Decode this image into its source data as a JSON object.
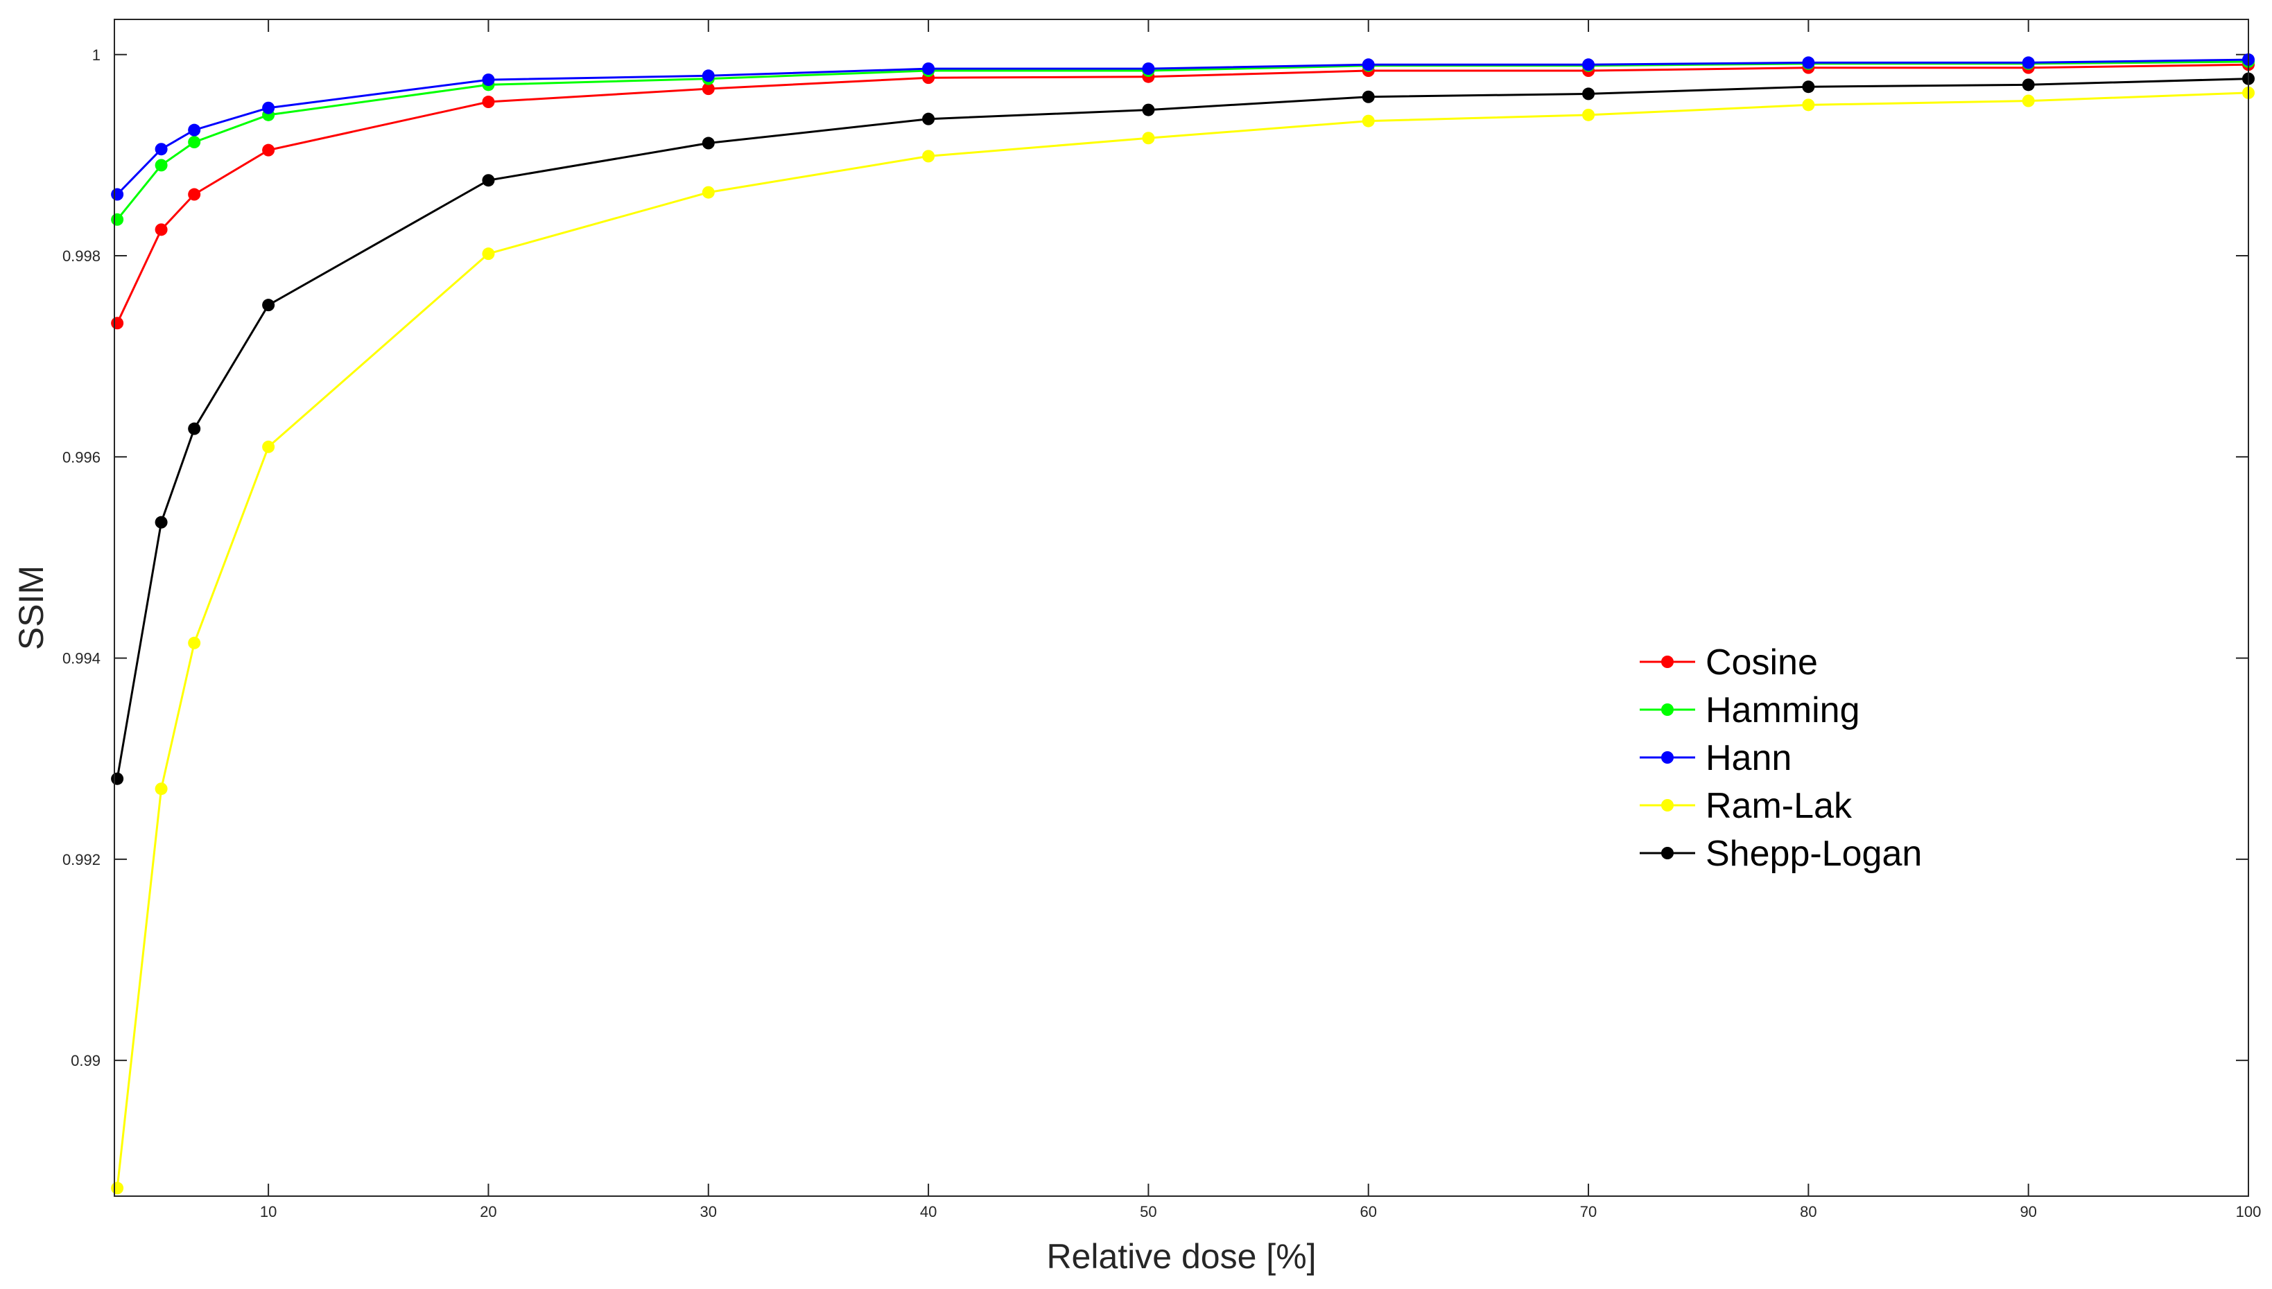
{
  "chart_data": {
    "type": "line",
    "title": "",
    "xlabel": "Relative dose [%]",
    "ylabel": "SSIM",
    "xlim": [
      3,
      100
    ],
    "ylim": [
      0.98865,
      1.00035
    ],
    "xticks": [
      10,
      20,
      30,
      40,
      50,
      60,
      70,
      80,
      90,
      100
    ],
    "yticks": [
      0.99,
      0.992,
      0.994,
      0.996,
      0.998,
      1
    ],
    "ytick_labels": [
      "0.99",
      "0.992",
      "0.994",
      "0.996",
      "0.998",
      "1"
    ],
    "grid": false,
    "legend_position": "center-right",
    "x": [
      3.13,
      5.13,
      6.63,
      10,
      20,
      30,
      40,
      50,
      60,
      70,
      80,
      90,
      100
    ],
    "series": [
      {
        "name": "Cosine",
        "color": "#ff0000",
        "values": [
          0.99733,
          0.99826,
          0.99861,
          0.99905,
          0.99953,
          0.99966,
          0.99977,
          0.99978,
          0.99984,
          0.99984,
          0.99987,
          0.99987,
          0.9999
        ]
      },
      {
        "name": "Hamming",
        "color": "#00ff00",
        "values": [
          0.99836,
          0.9989,
          0.99913,
          0.9994,
          0.9997,
          0.99976,
          0.99984,
          0.99984,
          0.99989,
          0.99989,
          0.99991,
          0.99991,
          0.99993
        ]
      },
      {
        "name": "Hann",
        "color": "#0000ff",
        "values": [
          0.99861,
          0.99906,
          0.99925,
          0.99947,
          0.99975,
          0.99979,
          0.99986,
          0.99986,
          0.9999,
          0.9999,
          0.99992,
          0.99992,
          0.99995
        ]
      },
      {
        "name": "Ram-Lak",
        "color": "#ffff00",
        "values": [
          0.98873,
          0.9927,
          0.99415,
          0.9961,
          0.99802,
          0.99863,
          0.99899,
          0.99917,
          0.99934,
          0.9994,
          0.9995,
          0.99954,
          0.99962
        ]
      },
      {
        "name": "Shepp-Logan",
        "color": "#000000",
        "values": [
          0.9928,
          0.99535,
          0.99628,
          0.99751,
          0.99875,
          0.99912,
          0.99936,
          0.99945,
          0.99958,
          0.99961,
          0.99968,
          0.9997,
          0.99976
        ]
      }
    ]
  }
}
